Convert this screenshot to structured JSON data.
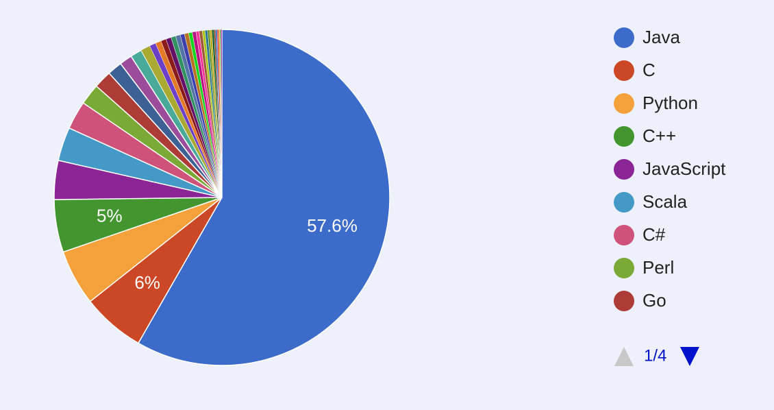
{
  "chart_data": {
    "type": "pie",
    "categories": [
      "Java",
      "C",
      "Python",
      "C++",
      "JavaScript",
      "Scala",
      "C#",
      "Perl",
      "Go",
      null,
      null,
      null,
      null,
      null,
      null,
      null,
      null,
      null,
      null,
      null,
      null,
      null,
      null,
      null,
      null,
      null,
      null,
      null,
      null,
      null,
      null,
      null,
      null,
      null,
      null,
      null
    ],
    "values": [
      57.6,
      6,
      5.3,
      5,
      3.7,
      3.2,
      2.7,
      2,
      1.7,
      1.4,
      1.2,
      1.1,
      0.9,
      0.6,
      0.55,
      0.5,
      0.5,
      0.45,
      0.45,
      0.4,
      0.4,
      0.35,
      0.35,
      0.3,
      0.3,
      0.25,
      0.25,
      0.2,
      0.2,
      0.2,
      0.15,
      0.15,
      0.15,
      0.1,
      0.1,
      0.1
    ],
    "value_labels": [
      "57.6%",
      "6%",
      null,
      "5%",
      null,
      null,
      null,
      null,
      null,
      null,
      null,
      null,
      null,
      null,
      null,
      null,
      null,
      null,
      null,
      null,
      null,
      null,
      null,
      null,
      null,
      null,
      null,
      null,
      null,
      null,
      null,
      null,
      null,
      null,
      null,
      null
    ],
    "colors": [
      "#3d6bc9",
      "#cc4726",
      "#f4a03b",
      "#43962f",
      "#8b2495",
      "#4499c6",
      "#cf527a",
      "#7aaa35",
      "#ad3b36",
      "#3d6095",
      "#9b4d9b",
      "#4aaa99",
      "#aaaa33",
      "#6b3fc8",
      "#e57a26",
      "#8b1a1a",
      "#651067",
      "#329262",
      "#5574a6",
      "#3b3eac",
      "#b77322",
      "#16d620",
      "#b91383",
      "#f4359e",
      "#9c5935",
      "#a9c413",
      "#2a778d",
      "#668d1c",
      "#bea413",
      "#0c5922",
      "#743411",
      "#3366cc",
      "#dc3912",
      "#ff9900",
      "#109618",
      "#990099"
    ],
    "legend_page": "1/4"
  }
}
